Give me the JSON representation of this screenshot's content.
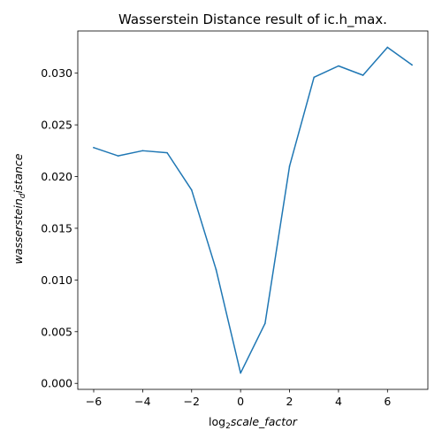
{
  "chart_data": {
    "type": "line",
    "title": "Wasserstein Distance result of ic.h_max.",
    "xlabel": {
      "prefix": "log",
      "subscript": "2",
      "main": "scale_factor"
    },
    "ylabel": {
      "main": "wasserstein",
      "subscript": "d",
      "suffix": "istance"
    },
    "x": [
      -6,
      -5,
      -4,
      -3,
      -2,
      -1,
      0,
      1,
      2,
      3,
      4,
      5,
      6,
      7
    ],
    "series": [
      {
        "values": [
          0.0228,
          0.022,
          0.0225,
          0.0223,
          0.0187,
          0.011,
          0.001,
          0.0058,
          0.021,
          0.0296,
          0.0307,
          0.0298,
          0.0325,
          0.0308
        ],
        "color": "#1f77b4"
      }
    ],
    "xlim": [
      -6.65,
      7.65
    ],
    "ylim": [
      -0.00058,
      0.03408
    ],
    "xticks": [
      -6,
      -4,
      -2,
      0,
      2,
      4,
      6
    ],
    "xtick_labels": [
      "−6",
      "−4",
      "−2",
      "0",
      "2",
      "4",
      "6"
    ],
    "yticks": [
      0.0,
      0.005,
      0.01,
      0.015,
      0.02,
      0.025,
      0.03
    ],
    "ytick_labels": [
      "0.000",
      "0.005",
      "0.010",
      "0.015",
      "0.020",
      "0.025",
      "0.030"
    ],
    "grid": false,
    "legend": "none"
  }
}
